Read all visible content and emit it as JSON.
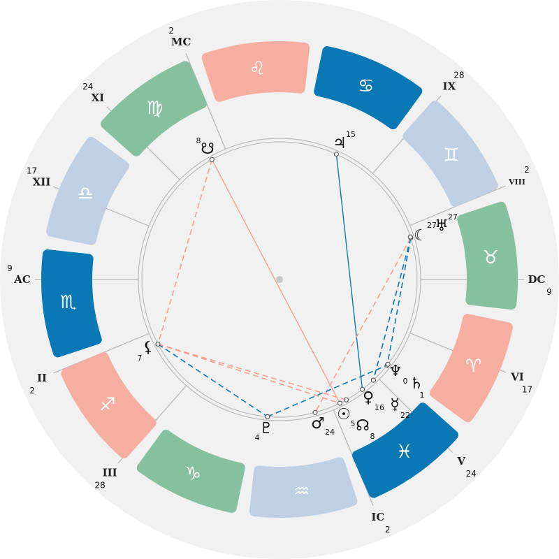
{
  "colors": {
    "water": "#0a78b4",
    "fire": "#f5ae9f",
    "earth": "#86c19f",
    "air": "#bfd0e4",
    "background": "#f1f1f1",
    "aspect_red": "#f4a08f",
    "aspect_blue": "#0a78b4"
  },
  "ascendant_longitude": 219,
  "signs": [
    {
      "name": "Aries",
      "glyph": "♈︎",
      "element": "fire"
    },
    {
      "name": "Taurus",
      "glyph": "♉︎",
      "element": "earth"
    },
    {
      "name": "Gemini",
      "glyph": "♊︎",
      "element": "air"
    },
    {
      "name": "Cancer",
      "glyph": "♋︎",
      "element": "water"
    },
    {
      "name": "Leo",
      "glyph": "♌︎",
      "element": "fire"
    },
    {
      "name": "Virgo",
      "glyph": "♍︎",
      "element": "earth"
    },
    {
      "name": "Libra",
      "glyph": "♎︎",
      "element": "air"
    },
    {
      "name": "Scorpio",
      "glyph": "♏︎",
      "element": "water"
    },
    {
      "name": "Sagittarius",
      "glyph": "♐︎",
      "element": "fire"
    },
    {
      "name": "Capricorn",
      "glyph": "♑︎",
      "element": "earth"
    },
    {
      "name": "Aquarius",
      "glyph": "♒︎",
      "element": "air"
    },
    {
      "name": "Pisces",
      "glyph": "♓︎",
      "element": "water"
    }
  ],
  "houses": [
    {
      "label": "AC",
      "degree": "9",
      "longitude": 219
    },
    {
      "label": "II",
      "degree": "2",
      "longitude": 241.5
    },
    {
      "label": "III",
      "degree": "28",
      "longitude": 267.7
    },
    {
      "label": "IC",
      "degree": "2",
      "longitude": 331.5
    },
    {
      "label": "V",
      "degree": "24",
      "longitude": 354
    },
    {
      "label": "VI",
      "degree": "17",
      "longitude": 16.7
    },
    {
      "label": "DC",
      "degree": "9",
      "longitude": 39
    },
    {
      "label": "VIII",
      "degree": "2",
      "longitude": 61.5
    },
    {
      "label": "IX",
      "degree": "28",
      "longitude": 87.7
    },
    {
      "label": "MC",
      "degree": "2",
      "longitude": 151.5
    },
    {
      "label": "XI",
      "degree": "24",
      "longitude": 174
    },
    {
      "label": "XII",
      "degree": "17",
      "longitude": 196.7
    }
  ],
  "planets": [
    {
      "id": "south-node",
      "glyph": "☋",
      "degree": "8",
      "longitude": 158.4
    },
    {
      "id": "jupiter",
      "glyph": "♃",
      "degree": "15",
      "longitude": 104.6
    },
    {
      "id": "moon",
      "glyph": "☾",
      "degree": "27",
      "longitude": 56.6
    },
    {
      "id": "uranus",
      "glyph": "♅",
      "degree": "27",
      "longitude": 57
    },
    {
      "id": "lilith",
      "glyph": "⚸",
      "degree": "7",
      "longitude": 247
    },
    {
      "id": "pluto",
      "glyph": "♇",
      "degree": "4",
      "longitude": 304
    },
    {
      "id": "mars",
      "glyph": "♂",
      "degree": "24",
      "longitude": 324
    },
    {
      "id": "sun",
      "glyph": "☉",
      "degree": "5",
      "longitude": 335
    },
    {
      "id": "north-node",
      "glyph": "☊",
      "degree": "8",
      "longitude": 338
    },
    {
      "id": "venus",
      "glyph": "♀",
      "degree": "16",
      "longitude": 346
    },
    {
      "id": "mercury",
      "glyph": "☿",
      "degree": "22",
      "longitude": 352
    },
    {
      "id": "neptune",
      "glyph": "♆",
      "degree": "0",
      "longitude": 0.5
    },
    {
      "id": "saturn",
      "glyph": "♄",
      "degree": "1",
      "longitude": 1
    }
  ],
  "aspects": [
    {
      "from": "south-node",
      "to": "sun",
      "color": "aspect_red",
      "style": "solid"
    },
    {
      "from": "south-node",
      "to": "lilith",
      "color": "aspect_red",
      "style": "dashed"
    },
    {
      "from": "jupiter",
      "to": "venus",
      "color": "aspect_blue",
      "style": "solid"
    },
    {
      "from": "moon",
      "to": "mercury",
      "color": "aspect_blue",
      "style": "dashed"
    },
    {
      "from": "moon",
      "to": "neptune",
      "color": "aspect_blue",
      "style": "dashed"
    },
    {
      "from": "moon",
      "to": "mars",
      "color": "aspect_red",
      "style": "dashed"
    },
    {
      "from": "lilith",
      "to": "pluto",
      "color": "aspect_blue",
      "style": "dashed"
    },
    {
      "from": "lilith",
      "to": "sun",
      "color": "aspect_red",
      "style": "dashed"
    },
    {
      "from": "lilith",
      "to": "north-node",
      "color": "aspect_red",
      "style": "dashed"
    },
    {
      "from": "pluto",
      "to": "neptune",
      "color": "aspect_blue",
      "style": "dashed"
    }
  ]
}
